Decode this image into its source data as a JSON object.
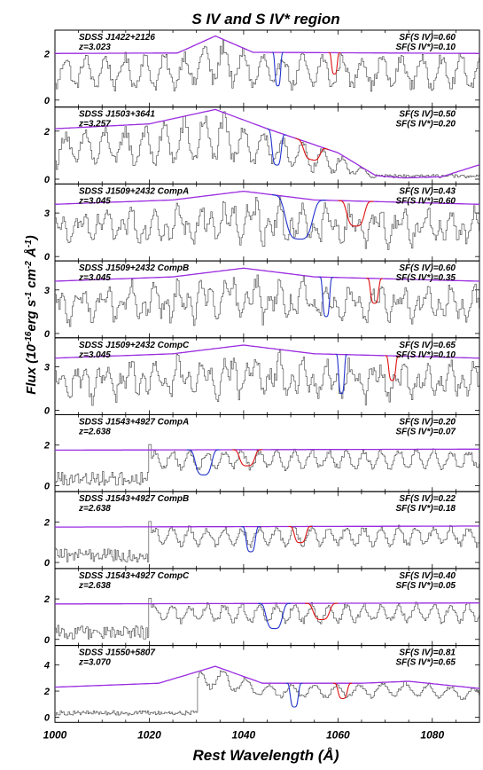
{
  "title": "S IV and S IV* region",
  "ylabel": "Flux (10-16erg s-1 cm-2 Å-1)",
  "ylabel_parts": {
    "flux": "Flux (10",
    "exp1": "-16",
    "erg": "erg s",
    "exp2": "-1",
    "cm": " cm",
    "exp3": "-2",
    "ang": " Å",
    "exp4": "-1",
    "close": ")"
  },
  "xlabel": "Rest Wavelength (Å)",
  "colors": {
    "spectrum": "#555555",
    "continuum": "#9a2be0",
    "siv": "#2233cc",
    "sivstar": "#dd1111"
  },
  "chart_data": {
    "type": "line",
    "title": "S IV and S IV* region",
    "xlabel": "Rest Wavelength (Å)",
    "ylabel": "Flux (10-16erg s-1 cm-2 Å-1)",
    "xlim": [
      1000,
      1090
    ],
    "xticks": [
      1000,
      1020,
      1040,
      1060,
      1080
    ],
    "panels": [
      {
        "object": "SDSS J1422+2126",
        "z": "z=3.023",
        "sf_siv": "SF(S IV)=0.60",
        "sf_sivstar": "SF(S IV*)=0.10",
        "ylim": [
          -0.3,
          3.0
        ],
        "yticks": [
          0,
          2
        ],
        "ytick_labels": [
          "0",
          "2"
        ],
        "continuum": [
          [
            1000,
            2.0
          ],
          [
            1026,
            2.02
          ],
          [
            1034,
            2.75
          ],
          [
            1042,
            2.05
          ],
          [
            1090,
            2.0
          ]
        ],
        "siv": [
          1046,
          1048.5
        ],
        "sivstar": [
          1058,
          1060.5
        ],
        "style": "sdss"
      },
      {
        "object": "SDSS J1503+3641",
        "z": "z=3.257",
        "sf_siv": "SF(S IV)=0.50",
        "sf_sivstar": "SF(S IV*)=0.20",
        "ylim": [
          -0.2,
          3.0
        ],
        "yticks": [
          0,
          2
        ],
        "ytick_labels": [
          "0",
          "2"
        ],
        "continuum": [
          [
            1000,
            2.1
          ],
          [
            1020,
            2.3
          ],
          [
            1034,
            2.9
          ],
          [
            1045,
            2.1
          ],
          [
            1060,
            1.1
          ],
          [
            1068,
            0.15
          ],
          [
            1074,
            0.05
          ],
          [
            1082,
            0.1
          ],
          [
            1090,
            0.6
          ]
        ],
        "siv": [
          1045,
          1049
        ],
        "sivstar": [
          1051,
          1058
        ],
        "style": "sdss",
        "drop": 1068
      },
      {
        "object": "SDSS J1509+2432 CompA",
        "z": "z=3.045",
        "sf_siv": "SF(S IV)=0.43",
        "sf_sivstar": "SF(S IV*)=0.60",
        "ylim": [
          -0.3,
          5.0
        ],
        "yticks": [
          0,
          3
        ],
        "ytick_labels": [
          "0",
          "3"
        ],
        "continuum": [
          [
            1000,
            3.6
          ],
          [
            1025,
            3.9
          ],
          [
            1040,
            4.5
          ],
          [
            1055,
            3.9
          ],
          [
            1090,
            3.6
          ]
        ],
        "siv": [
          1046,
          1057.5
        ],
        "sivstar": [
          1060,
          1067.5
        ],
        "style": "dense"
      },
      {
        "object": "SDSS J1509+2432 CompB",
        "z": "z=3.045",
        "sf_siv": "SF(S IV)=0.60",
        "sf_sivstar": "SF(S IV*)=0.35",
        "ylim": [
          -0.3,
          5.0
        ],
        "yticks": [
          0,
          3
        ],
        "ytick_labels": [
          "0",
          "3"
        ],
        "continuum": [
          [
            1000,
            3.6
          ],
          [
            1025,
            3.9
          ],
          [
            1040,
            4.5
          ],
          [
            1055,
            3.9
          ],
          [
            1090,
            3.6
          ]
        ],
        "siv": [
          1056,
          1059
        ],
        "sivstar": [
          1066,
          1069.5
        ],
        "style": "dense"
      },
      {
        "object": "SDSS J1509+2432 CompC",
        "z": "z=3.045",
        "sf_siv": "SF(S IV)=0.65",
        "sf_sivstar": "SF(S IV*)=0.10",
        "ylim": [
          -0.3,
          5.0
        ],
        "yticks": [
          0,
          3
        ],
        "ytick_labels": [
          "0",
          "3"
        ],
        "continuum": [
          [
            1000,
            3.6
          ],
          [
            1025,
            3.9
          ],
          [
            1040,
            4.5
          ],
          [
            1055,
            3.9
          ],
          [
            1090,
            3.6
          ]
        ],
        "siv": [
          1059.5,
          1062
        ],
        "sivstar": [
          1070,
          1073
        ],
        "style": "dense"
      },
      {
        "object": "SDSS J1543+4927 CompA",
        "z": "z=2.638",
        "sf_siv": "SF(S IV)=0.20",
        "sf_sivstar": "SF(S IV*)=0.07",
        "ylim": [
          -0.3,
          3.5
        ],
        "yticks": [
          0,
          2
        ],
        "ytick_labels": [
          "0",
          "2"
        ],
        "continuum": [
          [
            1000,
            1.75
          ],
          [
            1090,
            1.8
          ]
        ],
        "siv": [
          1028,
          1035
        ],
        "sivstar": [
          1037.5,
          1044
        ],
        "style": "noisy"
      },
      {
        "object": "SDSS J1543+4927 CompB",
        "z": "z=2.638",
        "sf_siv": "SF(S IV)=0.22",
        "sf_sivstar": "SF(S IV*)=0.18",
        "ylim": [
          -0.3,
          3.5
        ],
        "yticks": [
          0,
          2
        ],
        "ytick_labels": [
          "0",
          "2"
        ],
        "continuum": [
          [
            1000,
            1.75
          ],
          [
            1090,
            1.8
          ]
        ],
        "siv": [
          1039.5,
          1043.5
        ],
        "sivstar": [
          1049.5,
          1054.5
        ],
        "style": "noisy"
      },
      {
        "object": "SDSS J1543+4927 CompC",
        "z": "z=2.638",
        "sf_siv": "SF(S IV)=0.40",
        "sf_sivstar": "SF(S IV*)=0.05",
        "ylim": [
          -0.3,
          3.5
        ],
        "yticks": [
          0,
          2
        ],
        "ytick_labels": [
          "0",
          "2"
        ],
        "continuum": [
          [
            1000,
            1.75
          ],
          [
            1090,
            1.8
          ]
        ],
        "siv": [
          1043,
          1050
        ],
        "sivstar": [
          1053,
          1060
        ],
        "style": "noisy"
      },
      {
        "object": "SDSS J1550+5807",
        "z": "z=3.070",
        "sf_siv": "SF(S IV)=0.81",
        "sf_sivstar": "SF(S IV*)=0.65",
        "ylim": [
          -0.4,
          5.5
        ],
        "yticks": [
          0,
          2,
          4
        ],
        "ytick_labels": [
          "0",
          "2",
          "4"
        ],
        "continuum": [
          [
            1000,
            2.3
          ],
          [
            1022,
            2.6
          ],
          [
            1034,
            3.9
          ],
          [
            1044,
            2.6
          ],
          [
            1065,
            2.6
          ],
          [
            1075,
            2.75
          ],
          [
            1090,
            2.2
          ]
        ],
        "siv": [
          1049,
          1052.5
        ],
        "sivstar": [
          1059,
          1063
        ],
        "style": "quasar"
      }
    ]
  }
}
